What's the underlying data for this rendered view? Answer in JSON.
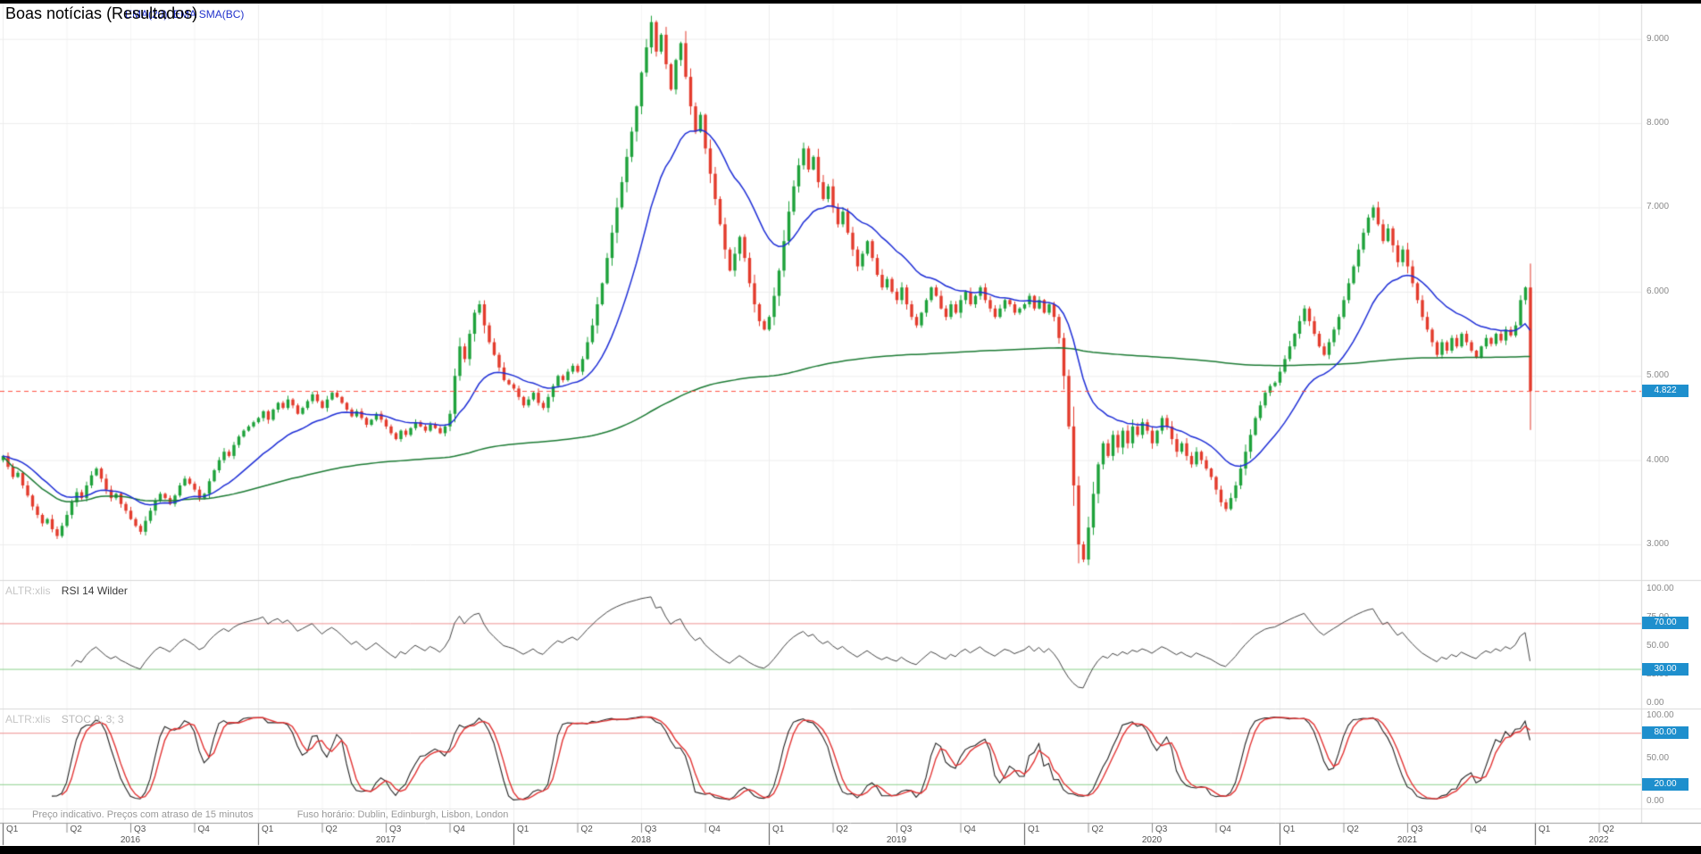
{
  "title": "Boas notícias (Resultados)",
  "legend": "EMA(20), EMA SMA(BC)",
  "footer": {
    "notice": "Preço indicativo. Preços com atraso de 15 minutos",
    "timezone": "Fuso horário: Dublin, Edinburgh, Lisbon, London"
  },
  "chart_data": {
    "type": "candlestick",
    "instrument": "ALTR:xlis",
    "interval": "weekly",
    "ylim": [
      2.58,
      9.42
    ],
    "first_open": 4.0,
    "closes": [
      4.05,
      3.92,
      3.8,
      3.85,
      3.7,
      3.58,
      3.45,
      3.35,
      3.25,
      3.3,
      3.18,
      3.1,
      3.22,
      3.35,
      3.5,
      3.62,
      3.55,
      3.7,
      3.82,
      3.9,
      3.78,
      3.65,
      3.55,
      3.6,
      3.48,
      3.4,
      3.3,
      3.22,
      3.15,
      3.28,
      3.4,
      3.52,
      3.6,
      3.55,
      3.48,
      3.58,
      3.7,
      3.78,
      3.72,
      3.65,
      3.55,
      3.6,
      3.75,
      3.88,
      4.0,
      4.1,
      4.05,
      4.18,
      4.28,
      4.35,
      4.4,
      4.45,
      4.5,
      4.58,
      4.48,
      4.6,
      4.68,
      4.62,
      4.72,
      4.65,
      4.55,
      4.62,
      4.7,
      4.78,
      4.7,
      4.62,
      4.72,
      4.8,
      4.75,
      4.68,
      4.6,
      4.52,
      4.58,
      4.5,
      4.42,
      4.48,
      4.55,
      4.48,
      4.4,
      4.32,
      4.25,
      4.35,
      4.3,
      4.38,
      4.45,
      4.4,
      4.35,
      4.42,
      4.38,
      4.32,
      4.4,
      4.55,
      5.0,
      5.35,
      5.2,
      5.5,
      5.75,
      5.85,
      5.6,
      5.4,
      5.25,
      5.1,
      4.95,
      4.9,
      4.85,
      4.75,
      4.65,
      4.72,
      4.8,
      4.68,
      4.62,
      4.75,
      4.88,
      5.0,
      4.95,
      5.05,
      5.12,
      5.05,
      5.2,
      5.4,
      5.6,
      5.85,
      6.1,
      6.4,
      6.7,
      7.0,
      7.3,
      7.6,
      7.9,
      8.2,
      8.6,
      8.9,
      9.2,
      8.85,
      9.05,
      8.7,
      8.4,
      8.75,
      8.95,
      8.55,
      8.2,
      7.9,
      8.1,
      7.7,
      7.4,
      7.1,
      6.8,
      6.5,
      6.25,
      6.45,
      6.65,
      6.4,
      6.1,
      5.85,
      5.65,
      5.55,
      5.7,
      5.95,
      6.25,
      6.6,
      6.95,
      7.25,
      7.5,
      7.7,
      7.45,
      7.6,
      7.3,
      7.1,
      7.25,
      7.0,
      6.8,
      6.95,
      6.7,
      6.5,
      6.3,
      6.45,
      6.6,
      6.4,
      6.2,
      6.05,
      6.15,
      6.0,
      5.9,
      6.05,
      5.85,
      5.7,
      5.6,
      5.75,
      5.9,
      6.05,
      5.95,
      5.8,
      5.7,
      5.85,
      5.75,
      5.9,
      6.0,
      5.85,
      5.95,
      6.05,
      5.9,
      5.8,
      5.7,
      5.8,
      5.9,
      5.85,
      5.75,
      5.8,
      5.85,
      5.95,
      5.8,
      5.9,
      5.75,
      5.85,
      5.7,
      5.45,
      5.0,
      4.4,
      3.7,
      3.0,
      2.82,
      3.2,
      3.6,
      3.95,
      4.2,
      4.05,
      4.3,
      4.15,
      4.35,
      4.2,
      4.4,
      4.3,
      4.45,
      4.35,
      4.2,
      4.35,
      4.5,
      4.4,
      4.25,
      4.1,
      4.2,
      4.05,
      3.95,
      4.1,
      4.0,
      3.9,
      3.8,
      3.65,
      3.5,
      3.42,
      3.55,
      3.7,
      3.9,
      4.1,
      4.3,
      4.5,
      4.65,
      4.8,
      4.88,
      4.92,
      5.05,
      5.2,
      5.35,
      5.5,
      5.65,
      5.8,
      5.65,
      5.5,
      5.35,
      5.25,
      5.4,
      5.55,
      5.7,
      5.9,
      6.1,
      6.3,
      6.5,
      6.7,
      6.88,
      7.0,
      6.8,
      6.6,
      6.75,
      6.55,
      6.35,
      6.5,
      6.3,
      6.1,
      5.9,
      5.7,
      5.55,
      5.4,
      5.25,
      5.4,
      5.3,
      5.45,
      5.35,
      5.5,
      5.4,
      5.3,
      5.22,
      5.35,
      5.45,
      5.38,
      5.5,
      5.42,
      5.55,
      5.48,
      5.6,
      5.9,
      6.05,
      4.822
    ],
    "price_marker": {
      "value": 4.822,
      "label": "4.822"
    },
    "price_axis": {
      "ticks": [
        {
          "v": 9,
          "label": "9.000"
        },
        {
          "v": 8,
          "label": "8.000"
        },
        {
          "v": 7,
          "label": "7.000"
        },
        {
          "v": 6,
          "label": "6.000"
        },
        {
          "v": 5,
          "label": "5.000"
        },
        {
          "v": 4,
          "label": "4.000"
        },
        {
          "v": 3,
          "label": "3.000"
        }
      ]
    },
    "x_axis": {
      "quarters": [
        "Q1",
        "Q2",
        "Q3",
        "Q4"
      ],
      "years": [
        "2016",
        "2017",
        "2018",
        "2019",
        "2020",
        "2021",
        "2022"
      ]
    },
    "overlays": {
      "ema_label": "EMA(20)",
      "ema_period": 20,
      "sma_label": "EMA SMA(BC)"
    },
    "rsi": {
      "title": "RSI 14 Wilder",
      "period": 14,
      "upper": {
        "value": 70,
        "label": "70.00"
      },
      "lower": {
        "value": 30,
        "label": "30.00"
      },
      "ticks": [
        {
          "v": 100,
          "label": "100.00"
        },
        {
          "v": 75,
          "label": "75.00"
        },
        {
          "v": 50,
          "label": "50.00"
        },
        {
          "v": 25,
          "label": "25.00"
        },
        {
          "v": 0,
          "label": "0.00"
        }
      ]
    },
    "stochastic": {
      "title": "STOC 9; 3; 3",
      "upper": {
        "value": 80,
        "label": "80.00"
      },
      "lower": {
        "value": 20,
        "label": "20.00"
      },
      "ticks": [
        {
          "v": 100,
          "label": "100.00"
        },
        {
          "v": 50,
          "label": "50.00"
        },
        {
          "v": 0,
          "label": "0.00"
        }
      ]
    },
    "colors": {
      "up": "#1ea23b",
      "down": "#e33b2c",
      "ema": "#1e2ed6",
      "sma": "#1b7a33",
      "rsi_line": "#444444",
      "stoch_k": "#222222",
      "stoch_d": "#e23333",
      "guide_red": "#ee9090",
      "guide_green": "#8cd08c",
      "marker": "#ff4f42",
      "badge": "#1e8fcd",
      "grid": "#ededed",
      "separator": "#d9d9d9"
    }
  }
}
